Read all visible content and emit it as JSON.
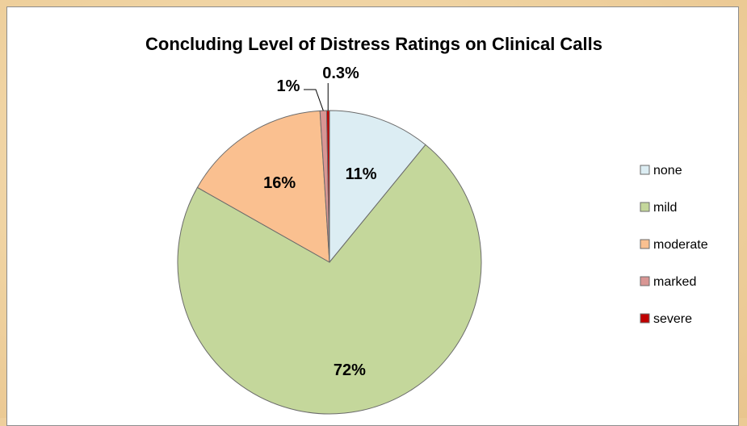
{
  "chart_data": {
    "type": "pie",
    "title": "Concluding Level of Distress Ratings on Clinical Calls",
    "categories": [
      "none",
      "mild",
      "moderate",
      "marked",
      "severe"
    ],
    "values": [
      10.9,
      72.3,
      15.8,
      0.7,
      0.3
    ],
    "labels": [
      "11%",
      "72%",
      "16%",
      "1%",
      "0.3%"
    ],
    "colors": [
      "#dcedf3",
      "#c4d79b",
      "#fac090",
      "#d99694",
      "#c00000"
    ],
    "start_angle_deg": 0,
    "direction": "clockwise",
    "legend_position": "right"
  }
}
